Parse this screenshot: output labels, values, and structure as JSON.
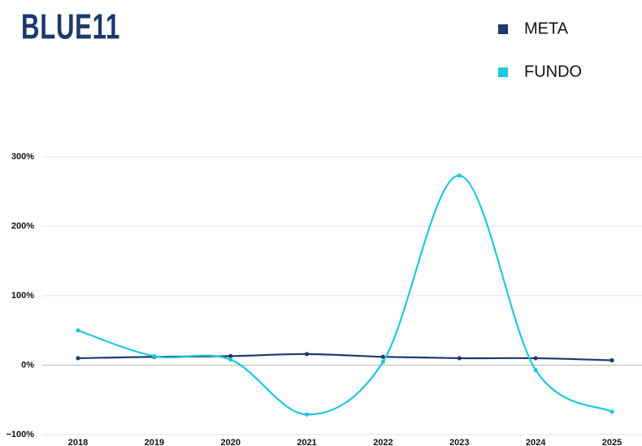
{
  "chart_data": {
    "type": "line",
    "title": "BLUE11",
    "categories": [
      "2018",
      "2019",
      "2020",
      "2021",
      "2022",
      "2023",
      "2024",
      "2025"
    ],
    "series": [
      {
        "name": "META",
        "color": "#1b3a6b",
        "values": [
          10,
          12,
          13,
          16,
          12,
          10,
          10,
          7
        ]
      },
      {
        "name": "FUNDO",
        "color": "#1ec8dc",
        "values": [
          50,
          13,
          8,
          -71,
          5,
          273,
          -7,
          -67
        ]
      }
    ],
    "ylim": [
      -100,
      300
    ],
    "yticks": [
      {
        "value": -100,
        "label": "−100%"
      },
      {
        "value": 0,
        "label": "0%"
      },
      {
        "value": 100,
        "label": "100%"
      },
      {
        "value": 200,
        "label": "200%"
      },
      {
        "value": 300,
        "label": "300%"
      }
    ],
    "grid": true,
    "legend": "top-right"
  }
}
